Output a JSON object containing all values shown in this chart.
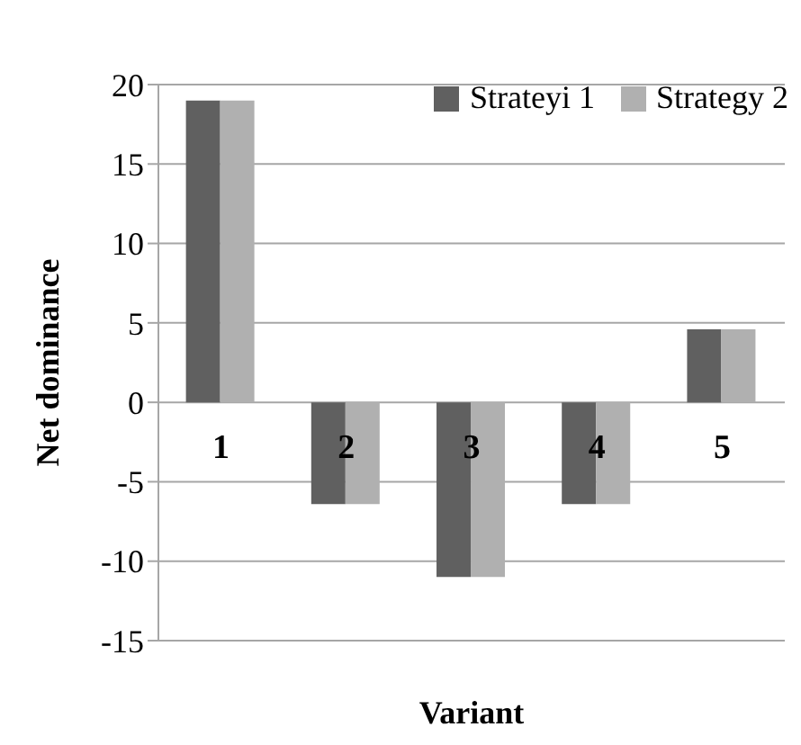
{
  "chart_data": {
    "type": "bar",
    "xlabel": "Variant",
    "ylabel": "Net dominance",
    "categories": [
      "1",
      "2",
      "3",
      "4",
      "5"
    ],
    "series": [
      {
        "name": "Strateyi 1",
        "color": "#606060",
        "values": [
          19,
          -6.4,
          -11,
          -6.4,
          4.6
        ]
      },
      {
        "name": "Strategy 2",
        "color": "#b0b0b0",
        "values": [
          19,
          -6.4,
          -11,
          -6.4,
          4.6
        ]
      }
    ],
    "ylim": [
      -15,
      20
    ],
    "yticks": [
      -15,
      -10,
      -5,
      0,
      5,
      10,
      15,
      20
    ],
    "grid": "y",
    "legend": "top right"
  }
}
